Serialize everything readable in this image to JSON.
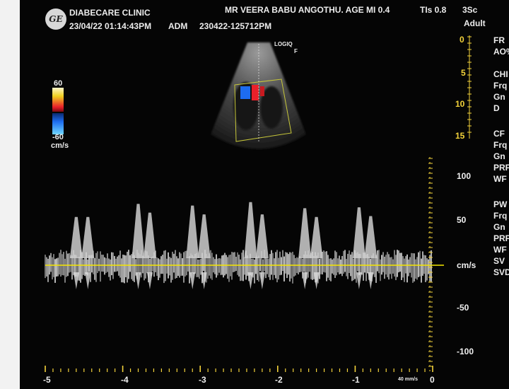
{
  "header": {
    "clinic": "DIABECARE CLINIC",
    "patient": "MR VEERA BABU ANGOTHU. AGE MI 0.4",
    "tis": "TIs 0.8",
    "probe": "3Sc",
    "datetime": "23/04/22 01:14:43PM",
    "adm_label": "ADM",
    "study_id": "230422-125712PM",
    "preset": "Adult",
    "logo_text": "GE"
  },
  "sector": {
    "brand": "LOGIQ",
    "marker": "F"
  },
  "color_scale": {
    "max": "60",
    "min": "-60",
    "unit": "cm/s",
    "top_color": "#e8202a",
    "bottom_color": "#1d6cf0"
  },
  "depth_scale": [
    "0",
    "5",
    "10",
    "15"
  ],
  "right_panel": {
    "items": [
      "FR",
      "AO%",
      "CHI",
      "Frq",
      "Gn",
      "D",
      "CF",
      "Frq",
      "Gn",
      "PRF",
      "WF",
      "PW",
      "Frq",
      "Gn",
      "PRF",
      "WF",
      "SV",
      "SVD"
    ]
  },
  "chart_data": {
    "type": "spectral_doppler",
    "y_ticks": [
      "100",
      "50",
      "cm/s",
      "-50",
      "-100"
    ],
    "x_ticks": [
      "-5",
      "-4",
      "-3",
      "-2",
      "-1",
      "0"
    ],
    "sweep_label": "40 mm/s",
    "baseline_color": "#f5e600",
    "peak_times_s": [
      -4.6,
      -4.45,
      -3.8,
      -3.65,
      -3.1,
      -2.95,
      -2.35,
      -2.2,
      -1.65,
      -1.5,
      -0.95,
      -0.8
    ],
    "peak_velocity_cm_s": [
      55,
      55,
      70,
      60,
      68,
      58,
      72,
      58,
      65,
      55,
      66,
      56
    ]
  }
}
